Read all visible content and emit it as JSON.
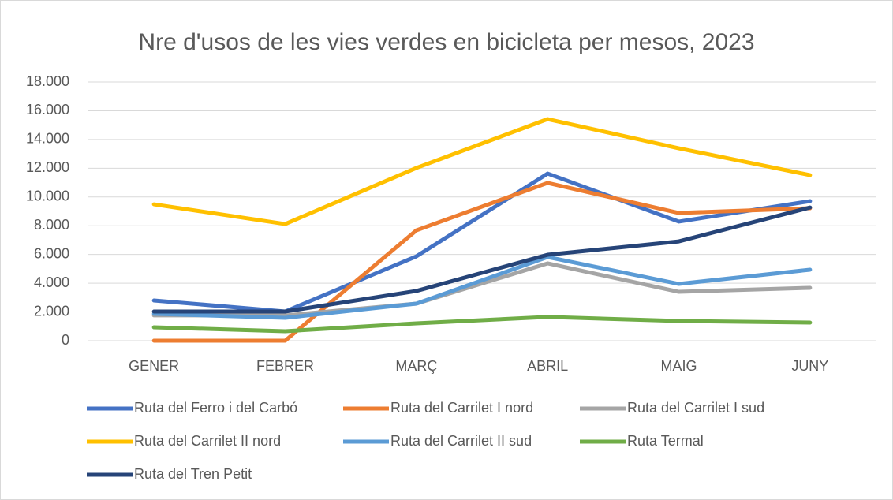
{
  "chart_data": {
    "type": "line",
    "title": "Nre d'usos de les vies verdes en bicicleta per mesos, 2023",
    "categories": [
      "GENER",
      "FEBRER",
      "MARÇ",
      "ABRIL",
      "MAIG",
      "JUNY"
    ],
    "series": [
      {
        "name": "Ruta del Ferro i del Carbó",
        "color": "#4472c4",
        "values": [
          2800,
          2030,
          5870,
          11630,
          8290,
          9710
        ]
      },
      {
        "name": "Ruta del Carrilet I nord",
        "color": "#ed7d31",
        "values": [
          0,
          0,
          7680,
          10980,
          8890,
          9220
        ]
      },
      {
        "name": "Ruta del Carrilet I sud",
        "color": "#a5a5a5",
        "values": [
          1760,
          1760,
          2580,
          5380,
          3400,
          3680
        ]
      },
      {
        "name": "Ruta del Carrilet II nord",
        "color": "#ffc000",
        "values": [
          9490,
          8120,
          12020,
          15420,
          13390,
          11520
        ]
      },
      {
        "name": "Ruta del Carrilet II sud",
        "color": "#5b9bd5",
        "values": [
          1870,
          1590,
          2580,
          5820,
          3950,
          4940
        ]
      },
      {
        "name": "Ruta Termal",
        "color": "#70ad47",
        "values": [
          930,
          660,
          1210,
          1650,
          1370,
          1260
        ]
      },
      {
        "name": "Ruta del Tren Petit",
        "color": "#264478",
        "values": [
          2030,
          2030,
          3460,
          5980,
          6910,
          9270
        ]
      }
    ],
    "ylim": [
      0,
      18000
    ],
    "yticks": [
      0,
      {
        "value": 2000,
        "label": "2.000"
      },
      {
        "value": 4000,
        "label": "4.000"
      },
      {
        "value": 6000,
        "label": "6.000"
      },
      {
        "value": 8000,
        "label": "8.000"
      },
      {
        "value": 10000,
        "label": "10.000"
      },
      {
        "value": 12000,
        "label": "12.000"
      },
      {
        "value": 14000,
        "label": "14.000"
      },
      {
        "value": 16000,
        "label": "16.000"
      },
      {
        "value": 18000,
        "label": "18.000"
      }
    ],
    "grid": true,
    "legend": "bottom"
  }
}
